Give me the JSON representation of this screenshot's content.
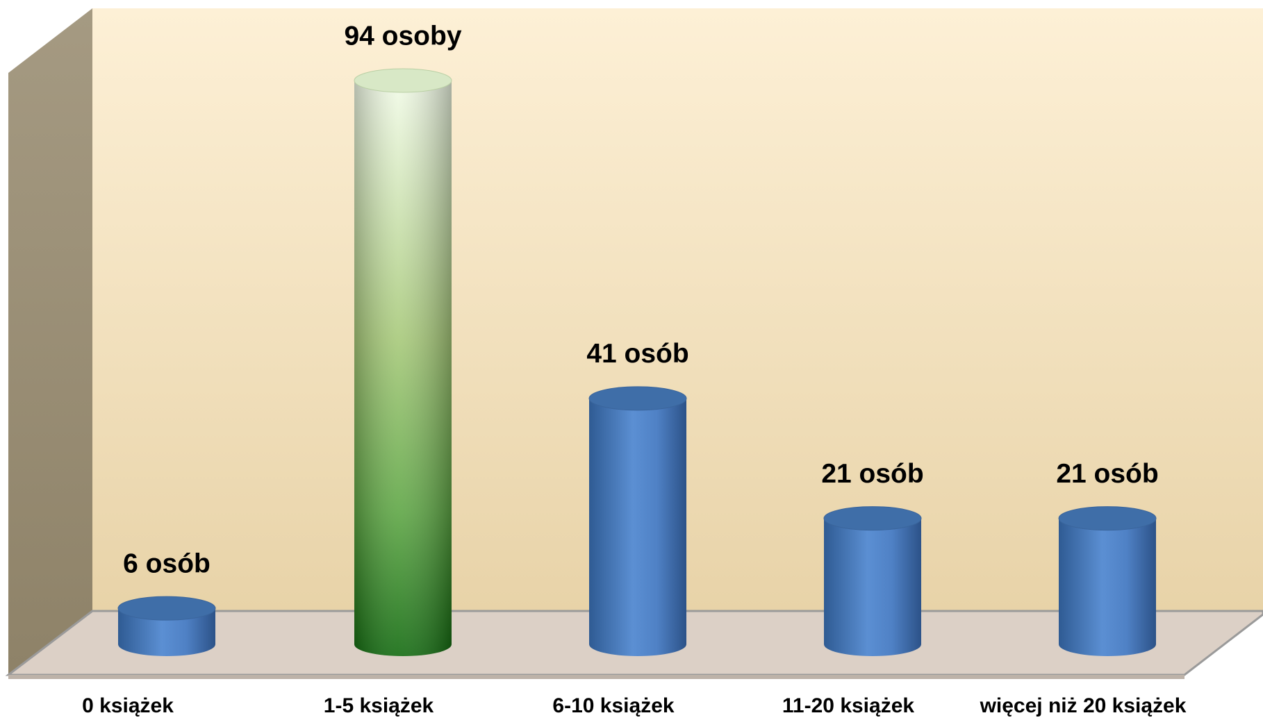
{
  "chart_data": {
    "type": "bar",
    "categories": [
      "0 książek",
      "1-5 książek",
      "6-10 książek",
      "11-20 książek",
      "więcej niż 20 książek"
    ],
    "values": [
      6,
      94,
      41,
      21,
      21
    ],
    "value_labels": [
      "6 osób",
      "94 osoby",
      "41 osób",
      "21 osób",
      "21 osób"
    ],
    "colors": [
      "#4f81bd",
      "#4e9a3a",
      "#4f81bd",
      "#4f81bd",
      "#4f81bd"
    ]
  }
}
